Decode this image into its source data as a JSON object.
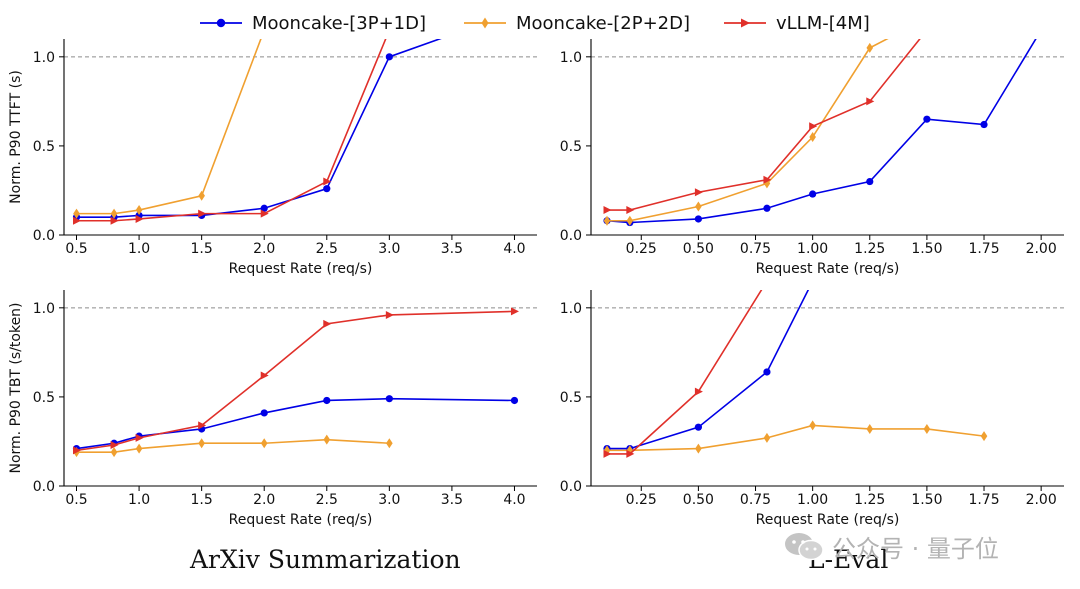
{
  "legend": [
    {
      "name": "Mooncake-[3P+1D]",
      "color": "#0000e6",
      "marker": "circle"
    },
    {
      "name": "Mooncake-[2P+2D]",
      "color": "#f0a030",
      "marker": "diamond"
    },
    {
      "name": "vLLM-[4M]",
      "color": "#e0302a",
      "marker": "triangle-right"
    }
  ],
  "captions": {
    "left": "ArXiv Summarization",
    "right": "L-Eval"
  },
  "watermark": {
    "text": "公众号 · 量子位",
    "icon": "wechat-icon"
  },
  "chart_data": [
    {
      "type": "line",
      "id": "arxiv-ttft",
      "xlabel": "Request Rate (req/s)",
      "ylabel": "Norm. P90 TTFT (s)",
      "xlim": [
        0.4,
        4.18
      ],
      "ylim": [
        0,
        1.1
      ],
      "xticks": [
        0.5,
        1.0,
        1.5,
        2.0,
        2.5,
        3.0,
        3.5,
        4.0
      ],
      "xtick_labels": [
        "0.5",
        "1.0",
        "1.5",
        "2.0",
        "2.5",
        "3.0",
        "3.5",
        "4.0"
      ],
      "yticks": [
        0.0,
        0.5,
        1.0
      ],
      "ytick_labels": [
        "0.0",
        "0.5",
        "1.0"
      ],
      "reference_line": 1.0,
      "series": [
        {
          "name": "Mooncake-[3P+1D]",
          "x": [
            0.5,
            0.8,
            1.0,
            1.5,
            2.0,
            2.5,
            3.0,
            3.6
          ],
          "y": [
            0.1,
            0.1,
            0.11,
            0.11,
            0.15,
            0.26,
            1.0,
            1.15
          ]
        },
        {
          "name": "Mooncake-[2P+2D]",
          "x": [
            0.5,
            0.8,
            1.0,
            1.5,
            2.0
          ],
          "y": [
            0.12,
            0.12,
            0.14,
            0.22,
            1.15
          ]
        },
        {
          "name": "vLLM-[4M]",
          "x": [
            0.5,
            0.8,
            1.0,
            1.5,
            2.0,
            2.5,
            3.0
          ],
          "y": [
            0.08,
            0.08,
            0.09,
            0.12,
            0.12,
            0.3,
            1.15
          ]
        }
      ]
    },
    {
      "type": "line",
      "id": "leval-ttft",
      "xlabel": "Request Rate (req/s)",
      "ylabel": "",
      "xlim": [
        0.03,
        2.1
      ],
      "ylim": [
        0,
        1.1
      ],
      "xticks": [
        0.25,
        0.5,
        0.75,
        1.0,
        1.25,
        1.5,
        1.75,
        2.0
      ],
      "xtick_labels": [
        "0.25",
        "0.50",
        "0.75",
        "1.00",
        "1.25",
        "1.50",
        "1.75",
        "2.00"
      ],
      "yticks": [
        0.0,
        0.5,
        1.0
      ],
      "ytick_labels": [
        "0.0",
        "0.5",
        "1.0"
      ],
      "reference_line": 1.0,
      "series": [
        {
          "name": "Mooncake-[3P+1D]",
          "x": [
            0.1,
            0.2,
            0.5,
            0.8,
            1.0,
            1.25,
            1.5,
            1.75,
            2.0
          ],
          "y": [
            0.08,
            0.07,
            0.09,
            0.15,
            0.23,
            0.3,
            0.65,
            0.62,
            1.15
          ]
        },
        {
          "name": "Mooncake-[2P+2D]",
          "x": [
            0.1,
            0.2,
            0.5,
            0.8,
            1.0,
            1.25,
            1.4
          ],
          "y": [
            0.08,
            0.08,
            0.16,
            0.29,
            0.55,
            1.05,
            1.15
          ]
        },
        {
          "name": "vLLM-[4M]",
          "x": [
            0.1,
            0.2,
            0.5,
            0.8,
            1.0,
            1.25,
            1.5
          ],
          "y": [
            0.14,
            0.14,
            0.24,
            0.31,
            0.61,
            0.75,
            1.15
          ]
        }
      ]
    },
    {
      "type": "line",
      "id": "arxiv-tbt",
      "xlabel": "Request Rate (req/s)",
      "ylabel": "Norm. P90 TBT (s/token)",
      "xlim": [
        0.4,
        4.18
      ],
      "ylim": [
        0,
        1.1
      ],
      "xticks": [
        0.5,
        1.0,
        1.5,
        2.0,
        2.5,
        3.0,
        3.5,
        4.0
      ],
      "xtick_labels": [
        "0.5",
        "1.0",
        "1.5",
        "2.0",
        "2.5",
        "3.0",
        "3.5",
        "4.0"
      ],
      "yticks": [
        0.0,
        0.5,
        1.0
      ],
      "ytick_labels": [
        "0.0",
        "0.5",
        "1.0"
      ],
      "reference_line": 1.0,
      "series": [
        {
          "name": "Mooncake-[3P+1D]",
          "x": [
            0.5,
            0.8,
            1.0,
            1.5,
            2.0,
            2.5,
            3.0,
            4.0
          ],
          "y": [
            0.21,
            0.24,
            0.28,
            0.32,
            0.41,
            0.48,
            0.49,
            0.48
          ]
        },
        {
          "name": "Mooncake-[2P+2D]",
          "x": [
            0.5,
            0.8,
            1.0,
            1.5,
            2.0,
            2.5,
            3.0
          ],
          "y": [
            0.19,
            0.19,
            0.21,
            0.24,
            0.24,
            0.26,
            0.24
          ]
        },
        {
          "name": "vLLM-[4M]",
          "x": [
            0.5,
            0.8,
            1.0,
            1.5,
            2.0,
            2.5,
            3.0,
            4.0
          ],
          "y": [
            0.2,
            0.23,
            0.27,
            0.34,
            0.62,
            0.91,
            0.96,
            0.98
          ]
        }
      ]
    },
    {
      "type": "line",
      "id": "leval-tbt",
      "xlabel": "Request Rate (req/s)",
      "ylabel": "",
      "xlim": [
        0.03,
        2.1
      ],
      "ylim": [
        0,
        1.1
      ],
      "xticks": [
        0.25,
        0.5,
        0.75,
        1.0,
        1.25,
        1.5,
        1.75,
        2.0
      ],
      "xtick_labels": [
        "0.25",
        "0.50",
        "0.75",
        "1.00",
        "1.25",
        "1.50",
        "1.75",
        "2.00"
      ],
      "yticks": [
        0.0,
        0.5,
        1.0
      ],
      "ytick_labels": [
        "0.0",
        "0.5",
        "1.0"
      ],
      "reference_line": 1.0,
      "series": [
        {
          "name": "Mooncake-[3P+1D]",
          "x": [
            0.1,
            0.2,
            0.5,
            0.8,
            1.0
          ],
          "y": [
            0.21,
            0.21,
            0.33,
            0.64,
            1.15
          ]
        },
        {
          "name": "Mooncake-[2P+2D]",
          "x": [
            0.1,
            0.2,
            0.5,
            0.8,
            1.0,
            1.25,
            1.5,
            1.75
          ],
          "y": [
            0.2,
            0.2,
            0.21,
            0.27,
            0.34,
            0.32,
            0.32,
            0.28
          ]
        },
        {
          "name": "vLLM-[4M]",
          "x": [
            0.1,
            0.2,
            0.5,
            0.8
          ],
          "y": [
            0.18,
            0.18,
            0.53,
            1.15
          ]
        }
      ]
    }
  ]
}
